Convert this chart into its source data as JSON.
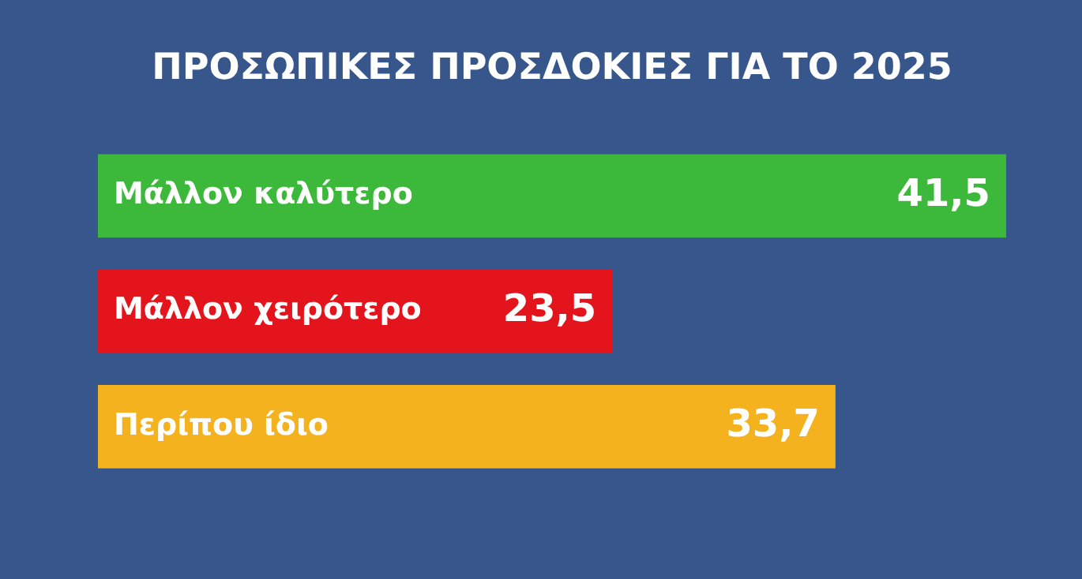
{
  "chart_data": {
    "type": "bar",
    "orientation": "horizontal",
    "title": "ΠΡΟΣΩΠΙΚΕΣ ΠΡΟΣΔΟΚΙΕΣ ΓΙΑ ΤΟ 2025",
    "categories": [
      "Μάλλον καλύτερο",
      "Μάλλον χειρότερο",
      "Περίπου ίδιο"
    ],
    "values": [
      41.5,
      23.5,
      33.7
    ],
    "colors": [
      "#3cb83a",
      "#e3141c",
      "#f4b21e"
    ],
    "value_labels": [
      "41,5",
      "23,5",
      "33,7"
    ],
    "legend": false
  }
}
